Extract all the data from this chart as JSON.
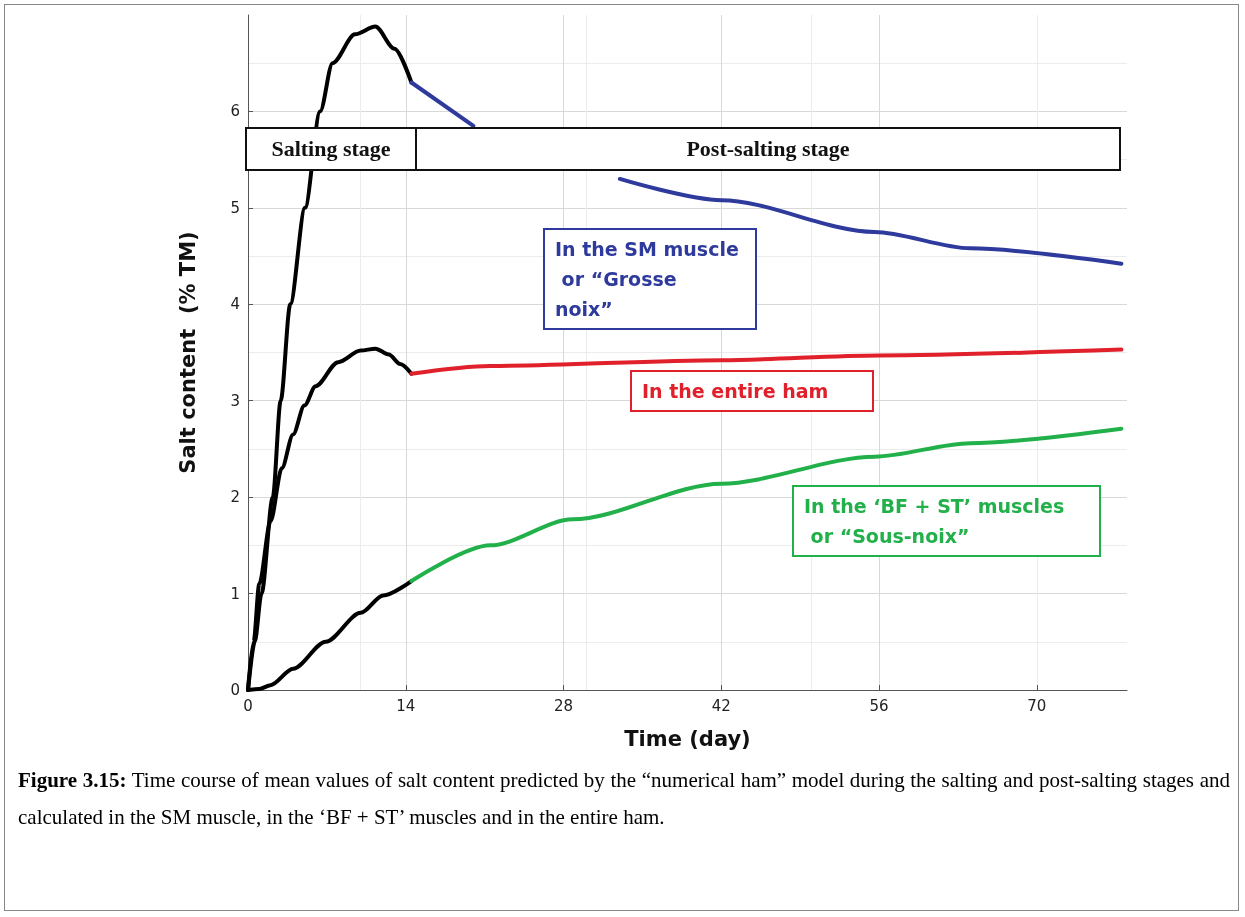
{
  "chart_data": {
    "type": "line",
    "xlabel": "Time (day)",
    "ylabel": "Salt content  (% TM)",
    "xlim": [
      0,
      78
    ],
    "xticks": [
      0,
      14,
      28,
      42,
      56,
      70
    ],
    "ylim": [
      0,
      7
    ],
    "yticks": [
      0,
      1,
      2,
      3,
      4,
      5,
      6
    ],
    "grid": true,
    "legend": false,
    "marker": "none",
    "line_style": "solid",
    "series": [
      {
        "color": "#000000",
        "x": [
          0,
          0.6,
          1.2,
          2.2,
          2.9,
          3.75,
          5.06,
          6.4,
          7.5,
          9.5,
          11.3,
          13,
          14.5
        ],
        "values": [
          0,
          0.5,
          1,
          2,
          3,
          4,
          5,
          6,
          6.5,
          6.8,
          6.88,
          6.65,
          6.3
        ]
      },
      {
        "color": "#000000",
        "x": [
          0,
          0.5,
          1,
          2,
          3,
          4,
          5,
          6,
          8,
          10,
          11.3,
          12.5,
          13.5,
          14.5
        ],
        "values": [
          0,
          0.5,
          1.1,
          1.75,
          2.3,
          2.65,
          2.95,
          3.15,
          3.4,
          3.52,
          3.54,
          3.48,
          3.38,
          3.28
        ]
      },
      {
        "color": "#000000",
        "x": [
          0,
          1,
          2,
          4,
          6.9,
          10,
          12,
          14.5
        ],
        "values": [
          0,
          0.01,
          0.05,
          0.22,
          0.5,
          0.8,
          0.98,
          1.13
        ]
      },
      {
        "name": "In the SM muscle or “Grosse noix”",
        "color": "#2e3a9c",
        "x": [
          14.5,
          20,
          26,
          33,
          42,
          55.6,
          64.1,
          77.5
        ],
        "values": [
          6.3,
          5.85,
          null,
          5.3,
          5.08,
          4.75,
          4.58,
          4.42
        ]
      },
      {
        "name": "In the entire ham",
        "color": "#e0202a",
        "x": [
          14.5,
          21.5,
          42,
          56,
          77.5
        ],
        "values": [
          3.28,
          3.36,
          3.42,
          3.47,
          3.53
        ]
      },
      {
        "name": "In the ‘BF + ST’ muscles or “Sous-noix”",
        "color": "#22b04a",
        "x": [
          14.5,
          21.5,
          28.8,
          42,
          55.6,
          64.1,
          77.5
        ],
        "values": [
          1.13,
          1.5,
          1.77,
          2.14,
          2.42,
          2.56,
          2.71
        ]
      }
    ],
    "annotations": [
      "Salting stage",
      "Post-salting stage",
      "Figure 3.15: Time course of mean values of salt content predicted by the “numerical ham” model during the salting and post-salting stages and calculated in the SM muscle, in the ‘BF + ST’ muscles and in the entire ham."
    ]
  }
}
